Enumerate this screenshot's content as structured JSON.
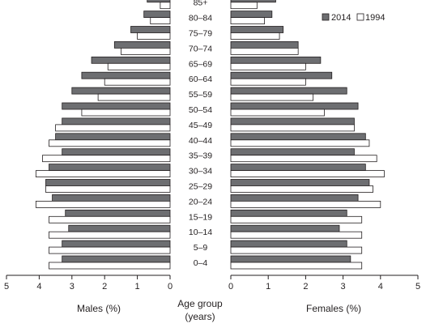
{
  "chart_data": {
    "type": "bar",
    "orientation": "horizontal",
    "subtype": "population-pyramid",
    "categories": [
      "0–4",
      "5–9",
      "10–14",
      "15–19",
      "20–24",
      "25–29",
      "30–34",
      "35–39",
      "40–44",
      "45–49",
      "50–54",
      "55–59",
      "60–64",
      "65–69",
      "70–74",
      "75–79",
      "80–84",
      "85+"
    ],
    "axis_labels": {
      "left": "Males (%)",
      "center_line1": "Age group",
      "center_line2": "(years)",
      "right": "Females (%)"
    },
    "xlim": [
      0,
      5
    ],
    "ticks": [
      "0",
      "1",
      "2",
      "3",
      "4",
      "5"
    ],
    "grid": false,
    "legend_position": "top-right",
    "series": [
      {
        "name": "2014",
        "color": "#6d6e71",
        "males": [
          3.3,
          3.3,
          3.1,
          3.2,
          3.6,
          3.8,
          3.7,
          3.3,
          3.5,
          3.3,
          3.3,
          3.0,
          2.7,
          2.4,
          1.7,
          1.2,
          0.8,
          0.7
        ],
        "females": [
          3.2,
          3.1,
          2.9,
          3.1,
          3.4,
          3.7,
          3.6,
          3.3,
          3.6,
          3.3,
          3.4,
          3.1,
          2.7,
          2.4,
          1.8,
          1.4,
          1.1,
          1.2
        ]
      },
      {
        "name": "1994",
        "color": "#ffffff",
        "males": [
          3.7,
          3.7,
          3.7,
          3.7,
          4.1,
          3.8,
          4.1,
          3.9,
          3.7,
          3.5,
          2.7,
          2.2,
          2.0,
          1.9,
          1.5,
          1.0,
          0.6,
          0.3
        ],
        "females": [
          3.5,
          3.5,
          3.5,
          3.5,
          4.0,
          3.8,
          4.1,
          3.9,
          3.7,
          3.3,
          2.5,
          2.2,
          2.0,
          2.0,
          1.8,
          1.3,
          0.9,
          0.7
        ]
      }
    ]
  }
}
